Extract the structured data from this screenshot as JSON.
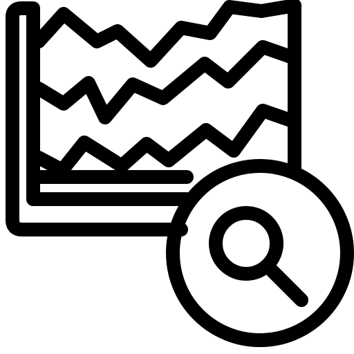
{
  "icon": {
    "name": "area-chart-search-icon",
    "stroke_color": "#000000",
    "background_color": "#ffffff",
    "style": "line-icon"
  }
}
